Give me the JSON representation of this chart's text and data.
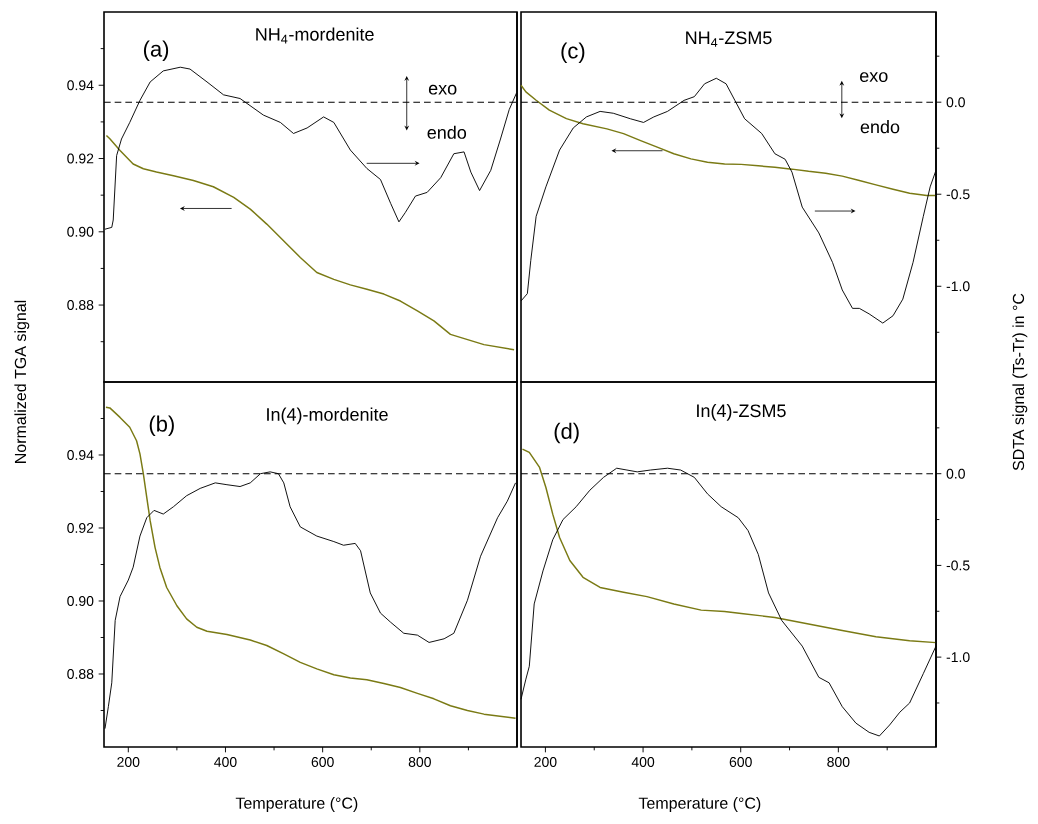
{
  "chart_data": [
    {
      "type": "line",
      "title": "NH$_{4}$-mordenite",
      "annotations": [
        "(a)",
        "exo",
        "endo"
      ],
      "ylabel": "Normalized TGA signal",
      "tick_labels": "y",
      "xlim": [
        150,
        1000
      ],
      "ylim": [
        0.859,
        0.96
      ],
      "yticks": [
        {
          "value": 0.87,
          "label": null
        },
        0.88,
        {
          "value": 0.89,
          "label": null
        },
        {
          "value": 0.9,
          "label": "0.90"
        },
        {
          "value": 0.91,
          "label": null
        },
        0.92,
        {
          "value": 0.93,
          "label": null
        },
        0.94,
        {
          "value": 0.95,
          "label": null
        }
      ],
      "y2lim": [
        -1.52,
        0.49
      ],
      "ref_lines": [
        {
          "axis": "y2",
          "value": 0,
          "line_style": "dashed"
        }
      ],
      "series": [
        {
          "color": "#7a7a14",
          "x": [
            155,
            162,
            183,
            210,
            231,
            258,
            293,
            334,
            375,
            417,
            451,
            485,
            520,
            554,
            588,
            623,
            657,
            691,
            726,
            760,
            795,
            829,
            863,
            932,
            994
          ],
          "values": [
            0.9263,
            0.9254,
            0.9222,
            0.9185,
            0.9172,
            0.9163,
            0.9153,
            0.914,
            0.9123,
            0.9094,
            0.9062,
            0.9021,
            0.8975,
            0.893,
            0.8889,
            0.887,
            0.8855,
            0.8843,
            0.883,
            0.8811,
            0.8784,
            0.8757,
            0.872,
            0.8692,
            0.8678
          ]
        },
        {
          "color": "#000000",
          "axis": "y2",
          "x": [
            152,
            166,
            169,
            176,
            186,
            203,
            224,
            245,
            272,
            307,
            327,
            362,
            396,
            430,
            478,
            513,
            540,
            568,
            602,
            623,
            657,
            691,
            719,
            740,
            757,
            770,
            791,
            815,
            843,
            870,
            891,
            905,
            923,
            946,
            966,
            984,
            999
          ],
          "values": [
            -0.69,
            -0.68,
            -0.64,
            -0.29,
            -0.2,
            -0.11,
            0.01,
            0.11,
            0.17,
            0.19,
            0.18,
            0.11,
            0.04,
            0.02,
            -0.07,
            -0.11,
            -0.17,
            -0.14,
            -0.08,
            -0.11,
            -0.26,
            -0.36,
            -0.42,
            -0.55,
            -0.65,
            -0.6,
            -0.51,
            -0.49,
            -0.41,
            -0.28,
            -0.27,
            -0.38,
            -0.48,
            -0.37,
            -0.2,
            -0.04,
            0.05
          ]
        }
      ]
    },
    {
      "type": "line",
      "title": "In(4)-mordenite",
      "annotations": [
        "(b)"
      ],
      "xlabel": "Temperature (°C)",
      "tick_labels": "xy",
      "xlim": [
        150,
        1000
      ],
      "xticks": [
        200,
        {
          "value": 300,
          "label": null
        },
        400,
        {
          "value": 500,
          "label": null
        },
        600,
        {
          "value": 700,
          "label": null
        },
        800,
        {
          "value": 900,
          "label": null
        }
      ],
      "ylim": [
        0.86,
        0.96
      ],
      "yticks": [
        {
          "value": 0.87,
          "label": null
        },
        0.88,
        {
          "value": 0.89,
          "label": null
        },
        {
          "value": 0.9,
          "label": "0.90"
        },
        {
          "value": 0.91,
          "label": null
        },
        0.92,
        {
          "value": 0.93,
          "label": null
        },
        0.94,
        {
          "value": 0.95,
          "label": null
        }
      ],
      "y2lim": [
        -1.49,
        0.5
      ],
      "ref_lines": [
        {
          "axis": "y2",
          "value": 0,
          "line_style": "dashed"
        }
      ],
      "series": [
        {
          "color": "#7a7a14",
          "x": [
            154,
            162,
            183,
            203,
            217,
            224,
            231,
            238,
            245,
            255,
            265,
            279,
            300,
            320,
            341,
            362,
            403,
            451,
            485,
            520,
            554,
            588,
            623,
            657,
            691,
            726,
            760,
            795,
            829,
            863,
            898,
            932,
            997
          ],
          "values": [
            0.9531,
            0.9529,
            0.9503,
            0.9476,
            0.9439,
            0.9403,
            0.9348,
            0.9284,
            0.922,
            0.9147,
            0.9092,
            0.9037,
            0.8987,
            0.8951,
            0.8928,
            0.8917,
            0.8908,
            0.8893,
            0.8878,
            0.8855,
            0.8832,
            0.8814,
            0.8798,
            0.8789,
            0.8784,
            0.8774,
            0.8763,
            0.8747,
            0.8732,
            0.8713,
            0.87,
            0.869,
            0.8679
          ]
        },
        {
          "color": "#000000",
          "axis": "y2",
          "x": [
            152,
            159,
            166,
            173,
            183,
            200,
            210,
            224,
            238,
            253,
            272,
            293,
            320,
            348,
            379,
            403,
            430,
            451,
            472,
            492,
            509,
            520,
            533,
            554,
            588,
            623,
            643,
            667,
            678,
            698,
            719,
            740,
            767,
            795,
            819,
            850,
            870,
            898,
            925,
            960,
            980,
            997
          ],
          "values": [
            -1.39,
            -1.27,
            -1.14,
            -0.8,
            -0.67,
            -0.58,
            -0.51,
            -0.34,
            -0.24,
            -0.2,
            -0.22,
            -0.18,
            -0.12,
            -0.08,
            -0.05,
            -0.06,
            -0.07,
            -0.05,
            0,
            0.01,
            0,
            -0.05,
            -0.18,
            -0.29,
            -0.34,
            -0.37,
            -0.39,
            -0.38,
            -0.42,
            -0.65,
            -0.76,
            -0.81,
            -0.87,
            -0.88,
            -0.92,
            -0.9,
            -0.87,
            -0.69,
            -0.45,
            -0.24,
            -0.15,
            -0.05
          ]
        }
      ]
    },
    {
      "type": "line",
      "title": "NH$_{4}$-ZSM5",
      "annotations": [
        "(c)",
        "exo",
        "endo"
      ],
      "y2label": "SDTA signal (Ts-Tr) in °C",
      "tick_labels": "y2",
      "xlim": [
        150,
        1000
      ],
      "ylim": [
        0.859,
        0.96
      ],
      "y2lim": [
        -1.52,
        0.49
      ],
      "y2ticks": [
        {
          "value": 0.25,
          "label": null
        },
        {
          "value": 0,
          "label": "0.0"
        },
        {
          "value": -0.25,
          "label": null
        },
        {
          "value": -0.5,
          "label": "-0.5"
        },
        {
          "value": -0.75,
          "label": null
        },
        {
          "value": -1,
          "label": "-1.0"
        },
        {
          "value": -1.25,
          "label": null
        }
      ],
      "ref_lines": [
        {
          "axis": "y2",
          "value": 0,
          "line_style": "dashed"
        }
      ],
      "series": [
        {
          "color": "#7a7a14",
          "x": [
            150,
            160,
            181,
            208,
            243,
            277,
            326,
            360,
            395,
            429,
            463,
            498,
            532,
            567,
            601,
            636,
            670,
            705,
            739,
            774,
            808,
            843,
            877,
            912,
            946,
            981,
            1000
          ],
          "values": [
            0.94,
            0.9382,
            0.9359,
            0.9332,
            0.9309,
            0.9295,
            0.9281,
            0.9268,
            0.9249,
            0.9231,
            0.9213,
            0.9199,
            0.919,
            0.9185,
            0.9184,
            0.918,
            0.9176,
            0.9171,
            0.9165,
            0.916,
            0.9152,
            0.914,
            0.9128,
            0.9116,
            0.9105,
            0.9099,
            0.9099
          ]
        },
        {
          "color": "#000000",
          "axis": "y2",
          "x": [
            150,
            163,
            170,
            181,
            201,
            229,
            257,
            284,
            312,
            339,
            374,
            401,
            422,
            450,
            484,
            505,
            526,
            550,
            570,
            588,
            608,
            643,
            670,
            691,
            705,
            726,
            760,
            788,
            808,
            829,
            843,
            863,
            891,
            912,
            932,
            953,
            974,
            988,
            1000
          ],
          "values": [
            -1.08,
            -1.04,
            -0.86,
            -0.62,
            -0.46,
            -0.26,
            -0.14,
            -0.08,
            -0.05,
            -0.06,
            -0.09,
            -0.11,
            -0.08,
            -0.05,
            0.01,
            0.03,
            0.1,
            0.13,
            0.1,
            0.01,
            -0.09,
            -0.17,
            -0.28,
            -0.31,
            -0.38,
            -0.57,
            -0.71,
            -0.87,
            -1.02,
            -1.12,
            -1.12,
            -1.15,
            -1.2,
            -1.16,
            -1.07,
            -0.87,
            -0.62,
            -0.46,
            -0.37
          ]
        }
      ]
    },
    {
      "type": "line",
      "title": "In(4)-ZSM5",
      "annotations": [
        "(d)"
      ],
      "xlabel": "Temperature (°C)",
      "tick_labels": "xy2",
      "xlim": [
        150,
        1000
      ],
      "xticks": [
        200,
        {
          "value": 300,
          "label": null
        },
        400,
        {
          "value": 500,
          "label": null
        },
        600,
        {
          "value": 700,
          "label": null
        },
        800,
        {
          "value": 900,
          "label": null
        }
      ],
      "ylim": [
        0.86,
        0.96
      ],
      "y2lim": [
        -1.49,
        0.5
      ],
      "y2ticks": [
        {
          "value": 0.25,
          "label": null
        },
        {
          "value": 0,
          "label": "0.0"
        },
        {
          "value": -0.25,
          "label": null
        },
        {
          "value": -0.5,
          "label": "-0.5"
        },
        {
          "value": -0.75,
          "label": null
        },
        {
          "value": -1,
          "label": "-1.0"
        },
        {
          "value": -1.25,
          "label": null
        }
      ],
      "ref_lines": [
        {
          "axis": "y2",
          "value": 0,
          "line_style": "dashed"
        }
      ],
      "series": [
        {
          "color": "#7a7a14",
          "x": [
            153,
            167,
            188,
            201,
            215,
            229,
            250,
            277,
            312,
            360,
            408,
            463,
            519,
            567,
            601,
            670,
            739,
            808,
            877,
            946,
            1000
          ],
          "values": [
            0.9416,
            0.9407,
            0.9366,
            0.9311,
            0.9238,
            0.9174,
            0.9111,
            0.9065,
            0.9037,
            0.9024,
            0.9012,
            0.8992,
            0.8975,
            0.8971,
            0.8966,
            0.8955,
            0.8937,
            0.8919,
            0.8902,
            0.8891,
            0.8886
          ]
        },
        {
          "color": "#000000",
          "axis": "y2",
          "x": [
            150,
            160,
            167,
            177,
            195,
            215,
            236,
            263,
            291,
            319,
            346,
            367,
            388,
            415,
            450,
            477,
            505,
            532,
            560,
            595,
            615,
            636,
            657,
            684,
            726,
            760,
            781,
            808,
            836,
            863,
            884,
            905,
            926,
            946,
            974,
            1000
          ],
          "values": [
            -1.23,
            -1.12,
            -1.05,
            -0.71,
            -0.53,
            -0.36,
            -0.25,
            -0.18,
            -0.09,
            -0.02,
            0.03,
            0.02,
            0.01,
            0.02,
            0.03,
            0.02,
            -0.02,
            -0.11,
            -0.18,
            -0.24,
            -0.31,
            -0.44,
            -0.65,
            -0.8,
            -0.94,
            -1.11,
            -1.14,
            -1.27,
            -1.36,
            -1.41,
            -1.43,
            -1.37,
            -1.3,
            -1.25,
            -1.09,
            -0.94
          ]
        }
      ]
    }
  ]
}
